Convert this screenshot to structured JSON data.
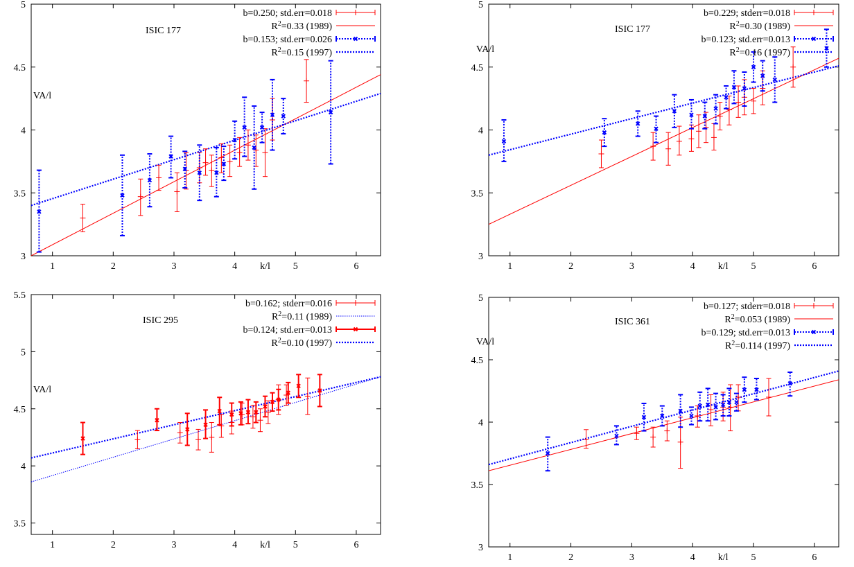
{
  "chart_data": [
    {
      "type": "scatter",
      "panel": "top-left",
      "annotation": "ISIC 177",
      "xlabel": "k/l",
      "ylabel": "VA/l",
      "xlim": [
        0.65,
        6.4
      ],
      "ylim": [
        3,
        5
      ],
      "xticks": [
        "1",
        "2",
        "3",
        "4",
        "5",
        "6"
      ],
      "yticks": [
        "3",
        "3.5",
        "4",
        "4.5",
        "5"
      ],
      "legend": {
        "placement": "top-right",
        "entries": [
          {
            "prefix": "b=0.250; std.err=0.018",
            "sup": "",
            "suffix": "",
            "style": "red-err"
          },
          {
            "prefix": "R",
            "sup": "2",
            "suffix": "=0.33  (1989)",
            "style": "red-line"
          },
          {
            "prefix": "b=0.153; std.err=0.026",
            "sup": "",
            "suffix": "",
            "style": "blue-err"
          },
          {
            "prefix": "R",
            "sup": "2",
            "suffix": "=0.15  (1997)",
            "style": "blue-line"
          }
        ]
      },
      "series": [
        {
          "name": "1989",
          "style": "red-err",
          "points": [
            [
              1.5,
              3.3,
              3.19,
              3.41
            ],
            [
              2.45,
              3.47,
              3.32,
              3.61
            ],
            [
              2.75,
              3.62,
              3.52,
              3.72
            ],
            [
              3.05,
              3.51,
              3.35,
              3.66
            ],
            [
              3.2,
              3.68,
              3.53,
              3.82
            ],
            [
              3.42,
              3.7,
              3.58,
              3.82
            ],
            [
              3.52,
              3.74,
              3.64,
              3.85
            ],
            [
              3.62,
              3.68,
              3.55,
              3.8
            ],
            [
              3.78,
              3.78,
              3.66,
              3.89
            ],
            [
              3.92,
              3.75,
              3.63,
              3.88
            ],
            [
              4.08,
              3.82,
              3.71,
              3.94
            ],
            [
              4.22,
              3.88,
              3.76,
              4.0
            ],
            [
              4.35,
              3.84,
              3.71,
              3.96
            ],
            [
              4.5,
              3.82,
              3.63,
              4.01
            ],
            [
              4.62,
              4.08,
              3.92,
              4.25
            ],
            [
              5.18,
              4.39,
              4.22,
              4.56
            ]
          ]
        },
        {
          "name": "1997",
          "style": "blue-err",
          "points": [
            [
              0.78,
              3.35,
              3.03,
              3.68
            ],
            [
              2.15,
              3.48,
              3.16,
              3.8
            ],
            [
              2.6,
              3.6,
              3.39,
              3.81
            ],
            [
              2.95,
              3.79,
              3.62,
              3.95
            ],
            [
              3.18,
              3.69,
              3.54,
              3.83
            ],
            [
              3.42,
              3.66,
              3.44,
              3.88
            ],
            [
              3.7,
              3.66,
              3.47,
              3.86
            ],
            [
              3.82,
              3.73,
              3.6,
              3.87
            ],
            [
              4.0,
              3.92,
              3.77,
              4.07
            ],
            [
              4.16,
              4.02,
              3.79,
              4.26
            ],
            [
              4.32,
              3.86,
              3.53,
              4.19
            ],
            [
              4.45,
              4.02,
              3.9,
              4.14
            ],
            [
              4.62,
              4.12,
              3.84,
              4.4
            ],
            [
              4.8,
              4.11,
              3.97,
              4.25
            ],
            [
              5.58,
              4.14,
              3.73,
              4.55
            ]
          ]
        }
      ],
      "fits": [
        {
          "name": "1989",
          "style": "red-line",
          "x": [
            0.65,
            6.4
          ],
          "y": [
            3.0,
            4.44
          ]
        },
        {
          "name": "1997",
          "style": "blue-line",
          "x": [
            0.65,
            6.4
          ],
          "y": [
            3.4,
            4.29
          ]
        }
      ]
    },
    {
      "type": "scatter",
      "panel": "top-right",
      "annotation": "ISIC 177",
      "xlabel": "k/l",
      "ylabel": "VA/l",
      "xlim": [
        0.65,
        6.4
      ],
      "ylim": [
        3,
        5
      ],
      "xticks": [
        "1",
        "2",
        "3",
        "4",
        "5",
        "6"
      ],
      "yticks": [
        "3",
        "3.5",
        "4",
        "4.5",
        "5"
      ],
      "legend": {
        "placement": "top-right",
        "entries": [
          {
            "prefix": "b=0.229; stderr=0.018",
            "sup": "",
            "suffix": "",
            "style": "red-err"
          },
          {
            "prefix": "R",
            "sup": "2",
            "suffix": "=0.30  (1989)",
            "style": "red-line"
          },
          {
            "prefix": "b=0.123; std.err=0.013",
            "sup": "",
            "suffix": "",
            "style": "blue-err"
          },
          {
            "prefix": "R",
            "sup": "2",
            "suffix": "=0.16  (1997)",
            "style": "blue-line"
          }
        ]
      },
      "series": [
        {
          "name": "1989",
          "style": "red-err",
          "points": [
            [
              2.5,
              3.81,
              3.7,
              3.92
            ],
            [
              3.35,
              3.87,
              3.76,
              3.98
            ],
            [
              3.6,
              3.85,
              3.72,
              3.98
            ],
            [
              3.78,
              3.91,
              3.8,
              4.03
            ],
            [
              3.98,
              3.93,
              3.83,
              4.04
            ],
            [
              4.1,
              3.99,
              3.86,
              4.12
            ],
            [
              4.22,
              4.02,
              3.9,
              4.14
            ],
            [
              4.35,
              3.94,
              3.84,
              4.05
            ],
            [
              4.45,
              4.11,
              4.0,
              4.22
            ],
            [
              4.6,
              4.16,
              4.04,
              4.27
            ],
            [
              4.75,
              4.22,
              4.1,
              4.35
            ],
            [
              4.85,
              4.26,
              4.12,
              4.4
            ],
            [
              5.0,
              4.23,
              4.13,
              4.33
            ],
            [
              5.15,
              4.33,
              4.2,
              4.47
            ],
            [
              5.65,
              4.5,
              4.34,
              4.66
            ]
          ]
        },
        {
          "name": "1997",
          "style": "blue-err",
          "points": [
            [
              0.9,
              3.91,
              3.75,
              4.08
            ],
            [
              2.55,
              3.98,
              3.87,
              4.09
            ],
            [
              3.1,
              4.05,
              3.95,
              4.15
            ],
            [
              3.4,
              4.01,
              3.9,
              4.11
            ],
            [
              3.7,
              4.15,
              4.02,
              4.28
            ],
            [
              3.98,
              4.12,
              4.01,
              4.24
            ],
            [
              4.2,
              4.11,
              4.01,
              4.22
            ],
            [
              4.38,
              4.17,
              4.05,
              4.28
            ],
            [
              4.55,
              4.26,
              4.17,
              4.35
            ],
            [
              4.68,
              4.34,
              4.21,
              4.47
            ],
            [
              4.85,
              4.33,
              4.19,
              4.46
            ],
            [
              5.0,
              4.5,
              4.38,
              4.62
            ],
            [
              5.15,
              4.43,
              4.31,
              4.55
            ],
            [
              5.35,
              4.4,
              4.22,
              4.58
            ],
            [
              6.2,
              4.65,
              4.5,
              4.8
            ]
          ]
        }
      ],
      "fits": [
        {
          "name": "1989",
          "style": "red-line",
          "x": [
            0.65,
            6.4
          ],
          "y": [
            3.25,
            4.57
          ]
        },
        {
          "name": "1997",
          "style": "blue-line",
          "x": [
            0.65,
            6.4
          ],
          "y": [
            3.8,
            4.51
          ]
        }
      ]
    },
    {
      "type": "scatter",
      "panel": "bottom-left",
      "annotation": "ISIC 295",
      "xlabel": "k/l",
      "ylabel": "VA/l",
      "xlim": [
        0.65,
        6.4
      ],
      "ylim": [
        3.4,
        5.5
      ],
      "xticks": [
        "1",
        "2",
        "3",
        "4",
        "5",
        "6"
      ],
      "yticks": [
        "3.5",
        "4",
        "4.5",
        "5",
        "5.5"
      ],
      "legend": {
        "placement": "top-right",
        "entries": [
          {
            "prefix": "b=0.162; stderr=0.016",
            "sup": "",
            "suffix": "",
            "style": "red-err"
          },
          {
            "prefix": "R",
            "sup": "2",
            "suffix": "=0.11  (1989)",
            "style": "blue-thin"
          },
          {
            "prefix": "b=0.124; std.err=0.013",
            "sup": "",
            "suffix": "",
            "style": "red-err-bold"
          },
          {
            "prefix": "R",
            "sup": "2",
            "suffix": "=0.10  (1997)",
            "style": "blue-line"
          }
        ]
      },
      "series": [
        {
          "name": "1989",
          "style": "red-err",
          "points": [
            [
              2.4,
              4.23,
              4.15,
              4.31
            ],
            [
              3.1,
              4.29,
              4.2,
              4.38
            ],
            [
              3.4,
              4.23,
              4.14,
              4.32
            ],
            [
              3.62,
              4.25,
              4.12,
              4.38
            ],
            [
              3.78,
              4.35,
              4.25,
              4.45
            ],
            [
              3.95,
              4.38,
              4.28,
              4.48
            ],
            [
              4.12,
              4.45,
              4.36,
              4.55
            ],
            [
              4.3,
              4.43,
              4.33,
              4.53
            ],
            [
              4.42,
              4.4,
              4.3,
              4.5
            ],
            [
              4.55,
              4.47,
              4.37,
              4.57
            ],
            [
              4.72,
              4.58,
              4.45,
              4.71
            ],
            [
              4.85,
              4.62,
              4.53,
              4.71
            ],
            [
              5.2,
              4.61,
              4.45,
              4.77
            ]
          ]
        },
        {
          "name": "1997",
          "style": "red-err-bold",
          "points": [
            [
              1.5,
              4.24,
              4.1,
              4.38
            ],
            [
              2.72,
              4.4,
              4.31,
              4.5
            ],
            [
              3.22,
              4.32,
              4.18,
              4.46
            ],
            [
              3.52,
              4.36,
              4.24,
              4.49
            ],
            [
              3.75,
              4.48,
              4.36,
              4.6
            ],
            [
              3.95,
              4.45,
              4.35,
              4.55
            ],
            [
              4.1,
              4.46,
              4.36,
              4.56
            ],
            [
              4.22,
              4.47,
              4.37,
              4.58
            ],
            [
              4.35,
              4.47,
              4.38,
              4.56
            ],
            [
              4.5,
              4.52,
              4.43,
              4.61
            ],
            [
              4.62,
              4.56,
              4.48,
              4.64
            ],
            [
              4.72,
              4.58,
              4.49,
              4.67
            ],
            [
              4.88,
              4.64,
              4.55,
              4.73
            ],
            [
              5.05,
              4.7,
              4.6,
              4.8
            ],
            [
              5.4,
              4.66,
              4.52,
              4.8
            ]
          ]
        }
      ],
      "fits": [
        {
          "name": "1989",
          "style": "blue-thin",
          "x": [
            0.65,
            6.4
          ],
          "y": [
            3.86,
            4.78
          ]
        },
        {
          "name": "1997",
          "style": "blue-line",
          "x": [
            0.65,
            6.4
          ],
          "y": [
            4.07,
            4.78
          ]
        }
      ]
    },
    {
      "type": "scatter",
      "panel": "bottom-right",
      "annotation": "ISIC 361",
      "xlabel": "k/l",
      "ylabel": "VA/l",
      "xlim": [
        0.65,
        6.4
      ],
      "ylim": [
        3,
        5
      ],
      "xticks": [
        "1",
        "2",
        "3",
        "4",
        "5",
        "6"
      ],
      "yticks": [
        "3",
        "3.5",
        "4",
        "4.5",
        "5"
      ],
      "legend": {
        "placement": "top-right",
        "entries": [
          {
            "prefix": "b=0.127; stderr=0.018",
            "sup": "",
            "suffix": "",
            "style": "red-err"
          },
          {
            "prefix": "R",
            "sup": "2",
            "suffix": "=0.053  (1989)",
            "style": "red-line"
          },
          {
            "prefix": "b=0.129; std.err=0.013",
            "sup": "",
            "suffix": "",
            "style": "blue-err"
          },
          {
            "prefix": "R",
            "sup": "2",
            "suffix": "=0.114  (1997)",
            "style": "blue-line"
          }
        ]
      },
      "series": [
        {
          "name": "1989",
          "style": "red-err",
          "points": [
            [
              2.25,
              3.86,
              3.79,
              3.94
            ],
            [
              3.08,
              3.91,
              3.86,
              3.96
            ],
            [
              3.35,
              3.88,
              3.8,
              3.96
            ],
            [
              3.58,
              3.93,
              3.85,
              4.01
            ],
            [
              3.8,
              3.84,
              3.63,
              4.04
            ],
            [
              4.08,
              4.05,
              3.96,
              4.13
            ],
            [
              4.3,
              4.1,
              3.97,
              4.22
            ],
            [
              4.5,
              4.12,
              4.01,
              4.24
            ],
            [
              4.62,
              4.12,
              3.93,
              4.3
            ],
            [
              4.75,
              4.2,
              4.09,
              4.3
            ],
            [
              5.25,
              4.2,
              4.05,
              4.35
            ]
          ]
        },
        {
          "name": "1997",
          "style": "blue-err",
          "points": [
            [
              1.62,
              3.75,
              3.61,
              3.88
            ],
            [
              2.75,
              3.89,
              3.82,
              3.97
            ],
            [
              3.2,
              4.04,
              3.93,
              4.15
            ],
            [
              3.5,
              4.05,
              3.97,
              4.13
            ],
            [
              3.8,
              4.09,
              3.96,
              4.22
            ],
            [
              3.98,
              4.05,
              3.98,
              4.12
            ],
            [
              4.12,
              4.13,
              4.01,
              4.24
            ],
            [
              4.25,
              4.14,
              4.01,
              4.27
            ],
            [
              4.38,
              4.12,
              4.02,
              4.23
            ],
            [
              4.5,
              4.14,
              4.05,
              4.22
            ],
            [
              4.6,
              4.16,
              4.05,
              4.27
            ],
            [
              4.72,
              4.16,
              4.09,
              4.23
            ],
            [
              4.85,
              4.26,
              4.16,
              4.36
            ],
            [
              5.05,
              4.26,
              4.18,
              4.35
            ],
            [
              5.6,
              4.31,
              4.21,
              4.4
            ]
          ]
        }
      ],
      "fits": [
        {
          "name": "1989",
          "style": "red-line",
          "x": [
            0.65,
            6.4
          ],
          "y": [
            3.61,
            4.34
          ]
        },
        {
          "name": "1997",
          "style": "blue-line",
          "x": [
            0.65,
            6.4
          ],
          "y": [
            3.66,
            4.41
          ]
        }
      ]
    }
  ]
}
